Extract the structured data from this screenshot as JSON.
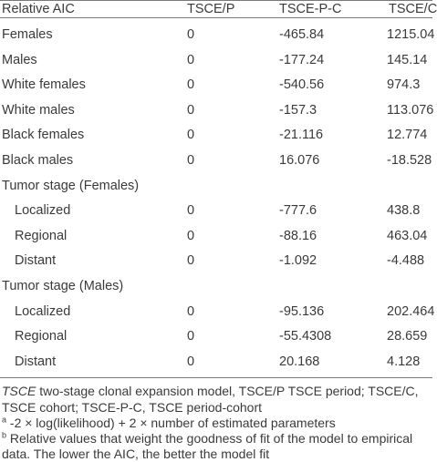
{
  "table": {
    "headers": [
      "Relative AIC",
      "TSCE/P",
      "TSCE-P-C",
      "TSCE/C"
    ],
    "rows": [
      {
        "label": "Females",
        "indent": false,
        "values": [
          "0",
          "-465.84",
          "1215.04"
        ]
      },
      {
        "label": "Males",
        "indent": false,
        "values": [
          "0",
          "-177.24",
          "145.14"
        ]
      },
      {
        "label": "White females",
        "indent": false,
        "values": [
          "0",
          "-540.56",
          "974.3"
        ]
      },
      {
        "label": "White males",
        "indent": false,
        "values": [
          "0",
          "-157.3",
          "113.076"
        ]
      },
      {
        "label": "Black females",
        "indent": false,
        "values": [
          "0",
          "-21.116",
          "12.774"
        ]
      },
      {
        "label": "Black males",
        "indent": false,
        "values": [
          "0",
          "16.076",
          "-18.528"
        ]
      },
      {
        "label": "Tumor stage (Females)",
        "indent": false,
        "values": [
          "",
          "",
          ""
        ]
      },
      {
        "label": "Localized",
        "indent": true,
        "values": [
          "0",
          "-777.6",
          "438.8"
        ]
      },
      {
        "label": "Regional",
        "indent": true,
        "values": [
          "0",
          "-88.16",
          "463.04"
        ]
      },
      {
        "label": "Distant",
        "indent": true,
        "values": [
          "0",
          "-1.092",
          "-4.488"
        ]
      },
      {
        "label": "Tumor stage (Males)",
        "indent": false,
        "values": [
          "",
          "",
          ""
        ]
      },
      {
        "label": "Localized",
        "indent": true,
        "values": [
          "0",
          "-95.136",
          "202.464"
        ]
      },
      {
        "label": "Regional",
        "indent": true,
        "values": [
          "0",
          "-55.4308",
          "28.659"
        ]
      },
      {
        "label": "Distant",
        "indent": true,
        "values": [
          "0",
          "20.168",
          "4.128"
        ]
      }
    ]
  },
  "footnotes": {
    "abbrev_term": "TSCE",
    "abbrev_text": " two-stage clonal expansion model, TSCE/P TSCE period; TSCE/C, TSCE cohort; TSCE-P-C, TSCE period-cohort",
    "note_a_marker": "a",
    "note_a_text": " -2 × log(likelihood) + 2 × number of estimated parameters",
    "note_b_marker": "b",
    "note_b_text": " Relative values that weight the goodness of fit of the model to empirical data. The lower the AIC, the better the model fit"
  }
}
